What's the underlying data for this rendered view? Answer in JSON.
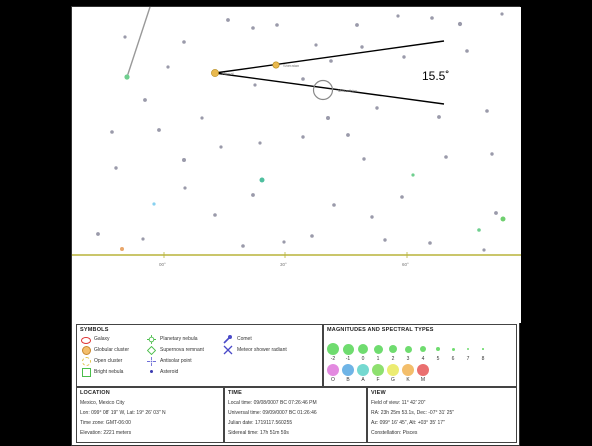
{
  "annotation": {
    "angle_label": "15.5˚"
  },
  "sky": {
    "named_stars": [
      {
        "name": "Hamal",
        "color": "#e9b94e"
      },
      {
        "name": "Sheratan",
        "color": "#e9b94e"
      },
      {
        "name": "Mesarthim",
        "color": "#bbb"
      }
    ],
    "ra_ticks": [
      "00°",
      "30°",
      "60°"
    ]
  },
  "symbols": {
    "title": "SYMBOLS",
    "items": [
      {
        "label": "Galaxy",
        "icon": "galaxy-icon"
      },
      {
        "label": "Globular cluster",
        "icon": "globular-cluster-icon"
      },
      {
        "label": "Open cluster",
        "icon": "open-cluster-icon"
      },
      {
        "label": "Bright nebula",
        "icon": "bright-nebula-icon"
      },
      {
        "label": "Planetary nebula",
        "icon": "planetary-nebula-icon"
      },
      {
        "label": "Supernova remnant",
        "icon": "supernova-remnant-icon"
      },
      {
        "label": "Antisolar point",
        "icon": "antisolar-point-icon"
      },
      {
        "label": "Asteroid",
        "icon": "asteroid-icon"
      },
      {
        "label": "Comet",
        "icon": "comet-icon"
      },
      {
        "label": "Meteor shower radiant",
        "icon": "meteor-radiant-icon"
      }
    ]
  },
  "magnitudes": {
    "title": "MAGNITUDES AND SPECTRAL TYPES",
    "mag_labels": [
      "-2",
      "-1",
      "0",
      "1",
      "2",
      "3",
      "4",
      "5",
      "6",
      "7",
      "8"
    ],
    "spectral": [
      {
        "label": "O",
        "color": "#e38ae0"
      },
      {
        "label": "B",
        "color": "#6fb4e6"
      },
      {
        "label": "A",
        "color": "#74d9d0"
      },
      {
        "label": "F",
        "color": "#8ee06f"
      },
      {
        "label": "G",
        "color": "#ecec72"
      },
      {
        "label": "K",
        "color": "#f3be6b"
      },
      {
        "label": "M",
        "color": "#ea6f6f"
      }
    ],
    "mag_color": "#6fdc6f"
  },
  "location": {
    "title": "LOCATION",
    "lines": [
      "Mexico, Mexico City",
      "Lon: 099° 08' 19\" W, Lat: 19° 26' 03\" N",
      "Time zone: GMT-06:00",
      "Elevation: 2221 meters"
    ]
  },
  "time": {
    "title": "TIME",
    "lines": [
      "Local time: 09/08/0007 BC 07:26:46 PM",
      "Universal time: 09/09/0007 BC 01:26:46",
      "Julian date: 1719117.560255",
      "Sidereal time: 17h 51m 59s"
    ]
  },
  "view": {
    "title": "VIEW",
    "lines": [
      "Field of view: 11° 42' 20\"",
      "RA: 23h 25m 53.1s, Dec: -07° 31' 25\"",
      "Az: 099° 16' 45\", Alt: +03° 35' 17\"",
      "Constellation: Pisces"
    ]
  }
}
